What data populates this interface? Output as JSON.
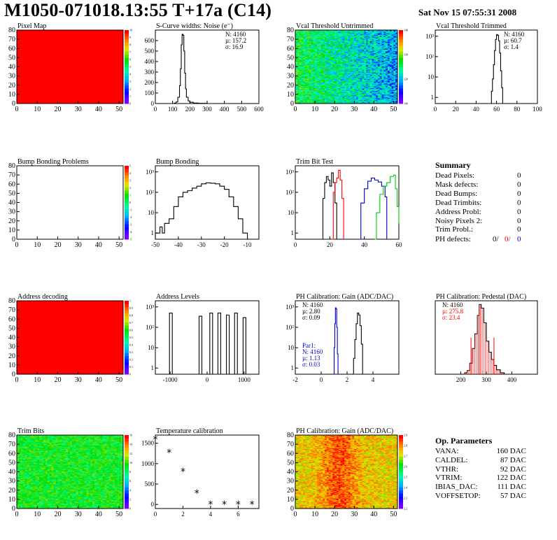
{
  "header": {
    "title": "M1050-071018.13:55 T+17a (C14)",
    "date": "Sat Nov 15 07:55:31 2008"
  },
  "colors": {
    "red": "#ff0000",
    "blue": "#0000cc",
    "green": "#00cc00",
    "black": "#000000"
  },
  "chart_data": [
    {
      "id": "pixel-map",
      "type": "heatmap",
      "title": "Pixel Map",
      "xlim": [
        0,
        52
      ],
      "ylim": [
        0,
        80
      ],
      "x_ticks": [
        "0",
        "10",
        "20",
        "30",
        "40",
        "50"
      ],
      "y_ticks": [
        "0",
        "10",
        "20",
        "30",
        "40",
        "50",
        "60",
        "70",
        "80"
      ],
      "palette_ticks": [
        "0",
        "1",
        "2",
        "3",
        "4",
        "5",
        "6",
        "7",
        "8",
        "9",
        "10"
      ],
      "fill": "uniform-red"
    },
    {
      "id": "scurve-noise",
      "type": "histogram",
      "title": "S-Curve widths: Noise (e⁻)",
      "xlim": [
        0,
        600
      ],
      "ylim": [
        0,
        700
      ],
      "x_ticks": [
        "0",
        "100",
        "200",
        "300",
        "400",
        "500",
        "600"
      ],
      "y_ticks": [
        "0",
        "100",
        "200",
        "300",
        "400",
        "500",
        "600"
      ],
      "stats": [
        "N: 4160",
        "µ: 157.2",
        "σ: 16.9"
      ],
      "series": [
        {
          "color": "#000000",
          "points": [
            [
              100,
              0
            ],
            [
              110,
              5
            ],
            [
              120,
              15
            ],
            [
              130,
              60
            ],
            [
              140,
              170
            ],
            [
              145,
              330
            ],
            [
              150,
              560
            ],
            [
              155,
              660
            ],
            [
              160,
              650
            ],
            [
              165,
              500
            ],
            [
              170,
              290
            ],
            [
              175,
              140
            ],
            [
              180,
              60
            ],
            [
              190,
              25
            ],
            [
              200,
              12
            ],
            [
              220,
              5
            ],
            [
              250,
              2
            ],
            [
              300,
              0
            ]
          ]
        }
      ]
    },
    {
      "id": "vcal-untrimmed",
      "type": "heatmap",
      "title": "Vcal Threshold Untrimmed",
      "xlim": [
        0,
        52
      ],
      "ylim": [
        0,
        80
      ],
      "x_ticks": [
        "0",
        "10",
        "20",
        "30",
        "40",
        "50"
      ],
      "y_ticks": [
        "0",
        "10",
        "20",
        "30",
        "40",
        "50",
        "60",
        "70",
        "80"
      ],
      "palette_ticks": [
        "100",
        "120",
        "130",
        "140"
      ],
      "fill": "noise-green-blue"
    },
    {
      "id": "vcal-trimmed",
      "type": "histogram",
      "title": "Vcal Threshold Trimmed",
      "xlim": [
        0,
        100
      ],
      "ylim": [
        0.5,
        2000
      ],
      "log_y": true,
      "x_ticks": [
        "0",
        "20",
        "40",
        "60",
        "80",
        "100"
      ],
      "y_ticks": [
        "1",
        "10",
        "10²",
        "10³"
      ],
      "stats": [
        "N: 4160",
        "µ: 60.7",
        "σ: 1.4"
      ],
      "series": [
        {
          "color": "#000000",
          "points": [
            [
              54,
              0.5
            ],
            [
              55,
              2
            ],
            [
              56,
              8
            ],
            [
              57,
              40
            ],
            [
              58,
              200
            ],
            [
              59,
              700
            ],
            [
              60,
              1200
            ],
            [
              61,
              1100
            ],
            [
              62,
              600
            ],
            [
              63,
              150
            ],
            [
              64,
              20
            ],
            [
              65,
              3
            ],
            [
              66,
              0.5
            ]
          ]
        }
      ]
    },
    {
      "id": "bump-problems",
      "type": "heatmap",
      "title": "Bump Bonding Problems",
      "xlim": [
        0,
        52
      ],
      "ylim": [
        0,
        80
      ],
      "x_ticks": [
        "0",
        "10",
        "20",
        "30",
        "40",
        "50"
      ],
      "y_ticks": [
        "0",
        "10",
        "20",
        "30",
        "40",
        "50",
        "60",
        "70",
        "80"
      ],
      "palette_ticks": [
        "-5",
        "-4",
        "-3",
        "-2",
        "-1",
        "0",
        "1",
        "2",
        "3",
        "4",
        "5"
      ],
      "fill": "empty"
    },
    {
      "id": "bump-bonding",
      "type": "histogram",
      "title": "Bump Bonding",
      "xlim": [
        -50,
        -5
      ],
      "ylim": [
        0.5,
        2000
      ],
      "log_y": true,
      "x_ticks": [
        "-50",
        "-40",
        "-30",
        "-20",
        "-10"
      ],
      "y_ticks": [
        "1",
        "10",
        "10²",
        "10³"
      ],
      "series": [
        {
          "color": "#000000",
          "points": [
            [
              -50,
              1
            ],
            [
              -48,
              2
            ],
            [
              -47,
              1
            ],
            [
              -46,
              3
            ],
            [
              -44,
              5
            ],
            [
              -42,
              20
            ],
            [
              -40,
              60
            ],
            [
              -38,
              100
            ],
            [
              -36,
              120
            ],
            [
              -34,
              160
            ],
            [
              -32,
              200
            ],
            [
              -30,
              260
            ],
            [
              -28,
              290
            ],
            [
              -26,
              280
            ],
            [
              -24,
              260
            ],
            [
              -22,
              200
            ],
            [
              -20,
              140
            ],
            [
              -18,
              60
            ],
            [
              -16,
              20
            ],
            [
              -14,
              5
            ],
            [
              -12,
              1
            ],
            [
              -10,
              0.5
            ]
          ]
        }
      ]
    },
    {
      "id": "trim-bit-test",
      "type": "histogram",
      "title": "Trim Bit Test",
      "xlim": [
        0,
        60
      ],
      "ylim": [
        0.5,
        2000
      ],
      "log_y": true,
      "x_ticks": [
        "0",
        "20",
        "40",
        "60"
      ],
      "y_ticks": [
        "1",
        "10",
        "10²",
        "10³"
      ],
      "series": [
        {
          "color": "#000000",
          "points": [
            [
              15,
              0.5
            ],
            [
              16,
              50
            ],
            [
              17,
              300
            ],
            [
              18,
              600
            ],
            [
              19,
              400
            ],
            [
              20,
              200
            ],
            [
              21,
              900
            ],
            [
              22,
              300
            ],
            [
              23,
              30
            ],
            [
              24,
              0.5
            ]
          ]
        },
        {
          "color": "#ff0000",
          "points": [
            [
              21,
              0.5
            ],
            [
              22,
              100
            ],
            [
              23,
              300
            ],
            [
              24,
              500
            ],
            [
              25,
              1200
            ],
            [
              26,
              400
            ],
            [
              27,
              50
            ],
            [
              28,
              0.5
            ]
          ]
        },
        {
          "color": "#0000cc",
          "points": [
            [
              37,
              0.5
            ],
            [
              38,
              30
            ],
            [
              40,
              150
            ],
            [
              42,
              350
            ],
            [
              44,
              500
            ],
            [
              46,
              400
            ],
            [
              48,
              320
            ],
            [
              50,
              200
            ],
            [
              52,
              60
            ],
            [
              53,
              0.5
            ]
          ]
        },
        {
          "color": "#00cc00",
          "points": [
            [
              46,
              0.5
            ],
            [
              47,
              10
            ],
            [
              49,
              80
            ],
            [
              51,
              200
            ],
            [
              53,
              300
            ],
            [
              55,
              600
            ],
            [
              57,
              700
            ],
            [
              58,
              150
            ],
            [
              59,
              20
            ],
            [
              60,
              3
            ]
          ]
        }
      ]
    },
    {
      "id": "address-decoding",
      "type": "heatmap",
      "title": "Address decoding",
      "xlim": [
        0,
        52
      ],
      "ylim": [
        0,
        80
      ],
      "x_ticks": [
        "0",
        "10",
        "20",
        "30",
        "40",
        "50"
      ],
      "y_ticks": [
        "0",
        "10",
        "20",
        "30",
        "40",
        "50",
        "60",
        "70",
        "80"
      ],
      "palette_ticks": [
        "0",
        "0.1",
        "0.2",
        "0.3",
        "0.4",
        "0.5",
        "0.6",
        "0.7",
        "0.8",
        "0.9",
        "1"
      ],
      "fill": "uniform-red"
    },
    {
      "id": "address-levels",
      "type": "histogram",
      "title": "Address Levels",
      "xlim": [
        -1400,
        1400
      ],
      "ylim": [
        0.5,
        2000
      ],
      "log_y": true,
      "x_ticks": [
        "-1000",
        "0",
        "1000"
      ],
      "y_ticks": [
        "1",
        "10",
        "10²",
        "10³"
      ],
      "peaks": [
        -980,
        -180,
        110,
        330,
        560,
        780,
        1010
      ],
      "peak_heights": [
        500,
        350,
        500,
        500,
        400,
        500,
        300
      ]
    },
    {
      "id": "ph-gain",
      "type": "histogram",
      "title": "PH Calibration: Gain (ADC/DAC)",
      "xlim": [
        -2,
        6
      ],
      "ylim": [
        0.5,
        2000
      ],
      "log_y": true,
      "x_ticks": [
        "-2",
        "0",
        "2",
        "4"
      ],
      "y_ticks": [
        "1",
        "10",
        "10²",
        "10³"
      ],
      "stats": [
        "N: 4160",
        "µ: 2.80",
        "σ: 0.09"
      ],
      "stats2": [
        "Par1:",
        "N: 4160",
        "µ: 1.13",
        "σ: 0.03"
      ],
      "series": [
        {
          "color": "#000000",
          "points": [
            [
              2.4,
              0.5
            ],
            [
              2.5,
              3
            ],
            [
              2.6,
              25
            ],
            [
              2.7,
              150
            ],
            [
              2.8,
              500
            ],
            [
              2.9,
              400
            ],
            [
              3.0,
              120
            ],
            [
              3.1,
              15
            ],
            [
              3.2,
              0.5
            ]
          ]
        },
        {
          "color": "#0000cc",
          "points": [
            [
              0.95,
              0.5
            ],
            [
              1.0,
              10
            ],
            [
              1.05,
              150
            ],
            [
              1.1,
              900
            ],
            [
              1.15,
              800
            ],
            [
              1.2,
              100
            ],
            [
              1.25,
              5
            ],
            [
              1.3,
              0.5
            ]
          ]
        }
      ]
    },
    {
      "id": "ph-pedestal",
      "type": "histogram",
      "title": "PH Calibration: Pedestal (DAC)",
      "xlim": [
        100,
        500
      ],
      "ylim": [
        0,
        1
      ],
      "x_ticks": [
        "200",
        "300",
        "400"
      ],
      "stats": [
        "N: 4160",
        "µ: 275.8",
        "σ: 23.4"
      ],
      "series": [
        {
          "color": "#000000",
          "points": [
            [
              200,
              0
            ],
            [
              215,
              0.02
            ],
            [
              225,
              0.05
            ],
            [
              235,
              0.15
            ],
            [
              245,
              0.35
            ],
            [
              255,
              0.55
            ],
            [
              265,
              0.8
            ],
            [
              272,
              0.95
            ],
            [
              280,
              0.9
            ],
            [
              290,
              0.7
            ],
            [
              300,
              0.45
            ],
            [
              310,
              0.3
            ],
            [
              320,
              0.2
            ],
            [
              330,
              0.12
            ],
            [
              340,
              0.06
            ],
            [
              355,
              0.02
            ],
            [
              370,
              0
            ]
          ]
        }
      ]
    },
    {
      "id": "trim-bits",
      "type": "heatmap",
      "title": "Trim Bits",
      "xlim": [
        0,
        52
      ],
      "ylim": [
        0,
        80
      ],
      "x_ticks": [
        "0",
        "10",
        "20",
        "30",
        "40",
        "50"
      ],
      "y_ticks": [
        "0",
        "10",
        "20",
        "30",
        "40",
        "50",
        "60",
        "70",
        "80"
      ],
      "palette_ticks": [
        "0",
        "2",
        "4",
        "6",
        "8",
        "10",
        "12",
        "14",
        "16"
      ],
      "fill": "noise-green"
    },
    {
      "id": "temperature-calibration",
      "type": "scatter",
      "title": "Temperature calibration",
      "xlim": [
        0,
        7.5
      ],
      "ylim": [
        -100,
        1700
      ],
      "x_ticks": [
        "0",
        "2",
        "4",
        "6"
      ],
      "y_ticks": [
        "0",
        "500",
        "1000",
        "1500"
      ],
      "points": [
        [
          0,
          1600
        ],
        [
          1,
          1270
        ],
        [
          2,
          810
        ],
        [
          3,
          280
        ],
        [
          4,
          0
        ],
        [
          5,
          0
        ],
        [
          6,
          0
        ],
        [
          7,
          0
        ]
      ]
    },
    {
      "id": "ph-gain-map",
      "type": "heatmap",
      "title": "PH Calibration: Gain (ADC/DAC)",
      "xlim": [
        0,
        52
      ],
      "ylim": [
        0,
        80
      ],
      "x_ticks": [
        "0",
        "10",
        "20",
        "30",
        "40",
        "50"
      ],
      "y_ticks": [
        "0",
        "10",
        "20",
        "30",
        "40",
        "50",
        "60",
        "70",
        "80"
      ],
      "palette_ticks": [
        "2.2",
        "2.3",
        "2.4",
        "2.5",
        "2.6",
        "2.7",
        "2.8",
        "2.9"
      ],
      "fill": "noise-red-yellow"
    }
  ],
  "summary": {
    "title": "Summary",
    "rows": [
      {
        "label": "Dead Pixels:",
        "value": "0"
      },
      {
        "label": "Mask defects:",
        "value": "0"
      },
      {
        "label": "Dead Bumps:",
        "value": "0"
      },
      {
        "label": "Dead Trimbits:",
        "value": "0"
      },
      {
        "label": "Address Probl:",
        "value": "0"
      },
      {
        "label": "Noisy Pixels 2:",
        "value": "0"
      },
      {
        "label": "Trim Probl.:",
        "value": "0"
      }
    ],
    "ph_label": "PH defects:",
    "ph_values": [
      "0/",
      "0/",
      "0"
    ]
  },
  "op_params": {
    "title": "Op. Parameters",
    "rows": [
      {
        "label": "VANA:",
        "value": "160 DAC"
      },
      {
        "label": "CALDEL:",
        "value": "87 DAC"
      },
      {
        "label": "VTHR:",
        "value": "92 DAC"
      },
      {
        "label": "VTRIM:",
        "value": "122 DAC"
      },
      {
        "label": "IBIAS_DAC:",
        "value": "111 DAC"
      },
      {
        "label": "VOFFSETOP:",
        "value": "57 DAC"
      }
    ]
  }
}
